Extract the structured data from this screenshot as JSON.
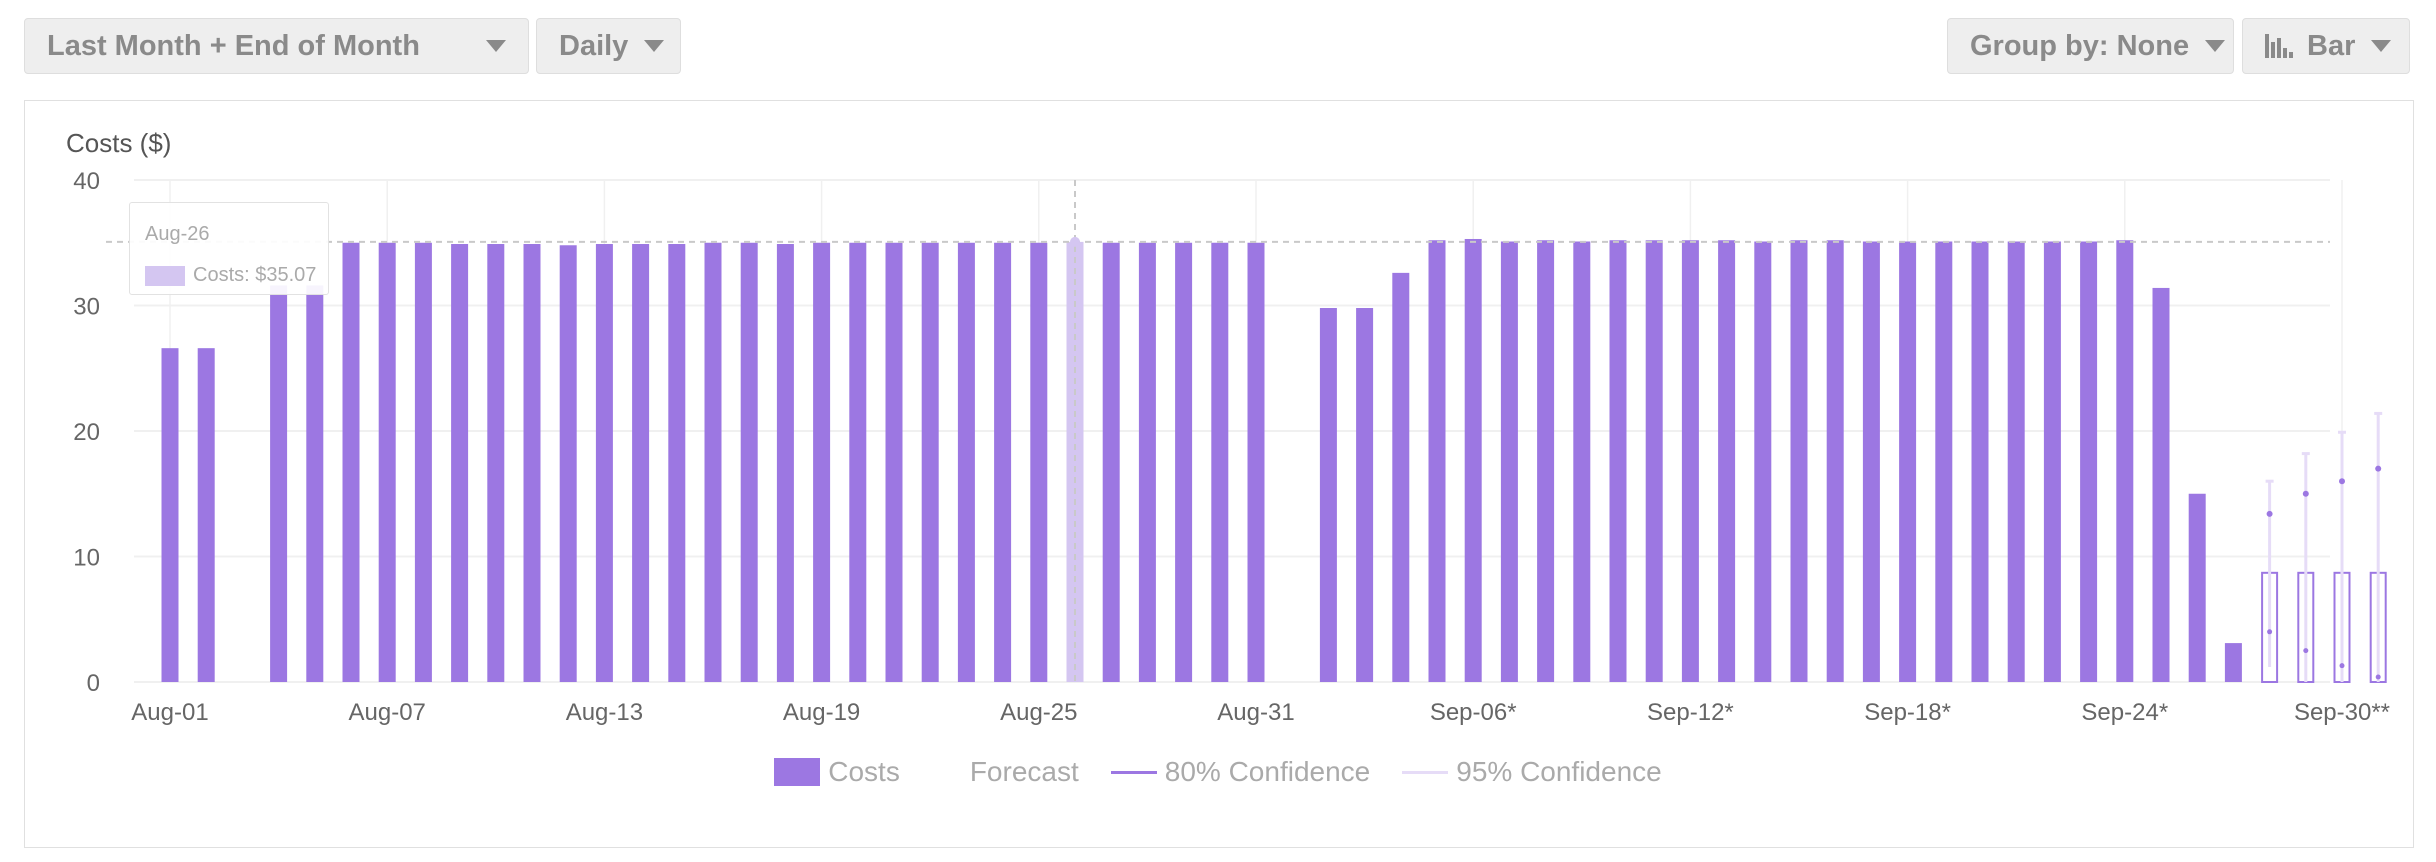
{
  "controls": {
    "range_label": "Last Month + End of Month",
    "interval_label": "Daily",
    "groupby_label": "Group by: None",
    "charttype_label": "Bar"
  },
  "tooltip": {
    "date": "Aug-26",
    "costs_label": "Costs: $35.07"
  },
  "legend": {
    "costs": "Costs",
    "forecast": "Forecast",
    "conf80": "80% Confidence",
    "conf95": "95% Confidence"
  },
  "colors": {
    "bar": "#9c77e2",
    "bar_highlight": "#d4c6f1",
    "forecast_outline": "#9c77e2",
    "conf80": "#9c77e2",
    "conf95": "#e6dcf7",
    "grid": "#f0f0f0",
    "axis_text": "#666666"
  },
  "chart_data": {
    "type": "bar",
    "ylabel": "Costs ($)",
    "ylim": [
      0,
      40
    ],
    "yticks": [
      0,
      10,
      20,
      30,
      40
    ],
    "grid": true,
    "reference_value": 35.07,
    "highlight_index": 25,
    "xtick_labels": [
      {
        "index": 0,
        "label": "Aug-01"
      },
      {
        "index": 6,
        "label": "Aug-07"
      },
      {
        "index": 12,
        "label": "Aug-13"
      },
      {
        "index": 18,
        "label": "Aug-19"
      },
      {
        "index": 24,
        "label": "Aug-25"
      },
      {
        "index": 30,
        "label": "Aug-31"
      },
      {
        "index": 36,
        "label": "Sep-06*"
      },
      {
        "index": 42,
        "label": "Sep-12*"
      },
      {
        "index": 48,
        "label": "Sep-18*"
      },
      {
        "index": 54,
        "label": "Sep-24*"
      },
      {
        "index": 60,
        "label": "Sep-30**"
      }
    ],
    "series": [
      {
        "name": "Costs",
        "values": [
          26.6,
          26.6,
          0,
          31.6,
          31.6,
          35.0,
          35.0,
          35.0,
          34.9,
          34.9,
          34.9,
          34.8,
          34.9,
          34.9,
          34.9,
          35.0,
          35.0,
          34.9,
          35.0,
          35.0,
          35.0,
          35.0,
          35.0,
          35.0,
          35.0,
          35.07,
          35.0,
          35.0,
          35.0,
          35.0,
          35.0,
          0,
          29.8,
          29.8,
          32.6,
          35.2,
          35.3,
          35.1,
          35.2,
          35.1,
          35.2,
          35.2,
          35.2,
          35.2,
          35.1,
          35.2,
          35.2,
          35.1,
          35.1,
          35.1,
          35.1,
          35.1,
          35.1,
          35.1,
          35.2,
          31.4,
          15.0,
          3.1
        ]
      },
      {
        "name": "Forecast",
        "values": [
          8.7,
          8.7,
          8.7,
          8.7
        ],
        "start_index": 58,
        "point": [
          13.4,
          15.0,
          16.0,
          17.0
        ],
        "conf80": [
          [
            4.0,
            13.4
          ],
          [
            2.5,
            15.0
          ],
          [
            1.3,
            16.0
          ],
          [
            0.4,
            17.0
          ]
        ],
        "conf95": [
          [
            1.2,
            16.0
          ],
          [
            0.0,
            18.2
          ],
          [
            0.0,
            19.9
          ],
          [
            0.0,
            21.4
          ]
        ]
      }
    ]
  }
}
